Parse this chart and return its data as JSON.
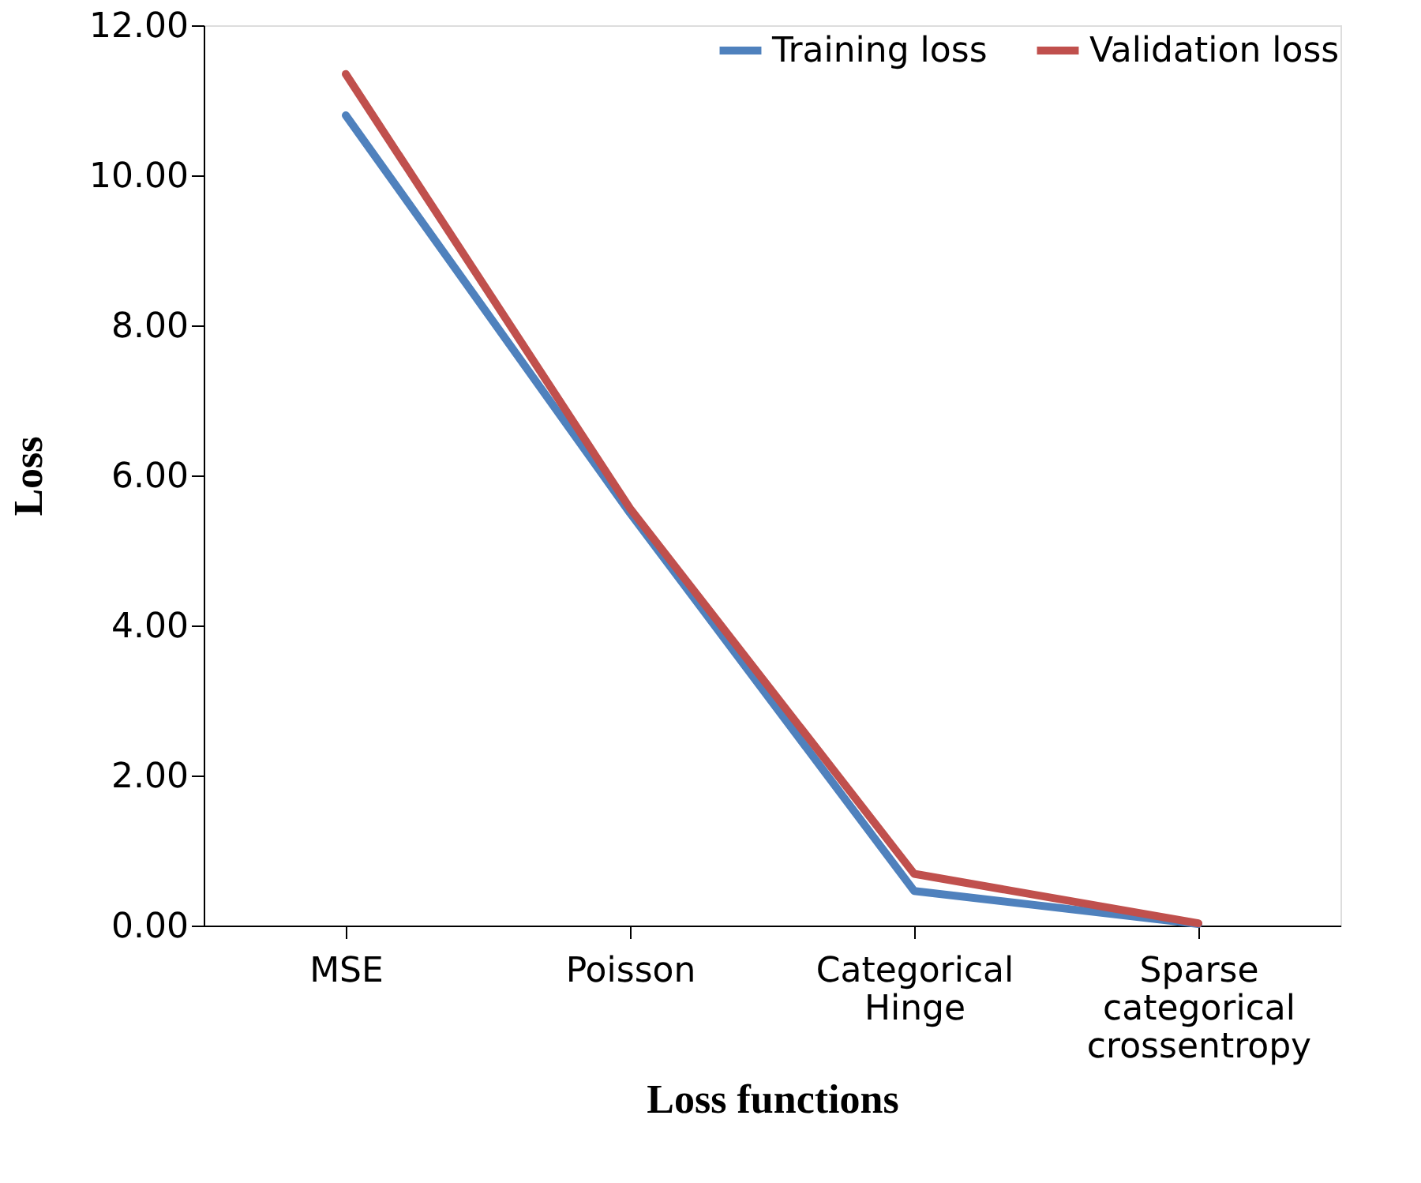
{
  "chart_data": {
    "type": "line",
    "xlabel": "Loss  functions",
    "ylabel": "Loss",
    "categories": [
      "MSE",
      "Poisson",
      "Categorical Hinge",
      "Sparse categorical crossentropy"
    ],
    "series": [
      {
        "name": "Training loss",
        "color": "#4f81bd",
        "values": [
          10.8,
          5.5,
          0.46,
          0.02
        ]
      },
      {
        "name": "Validation loss",
        "color": "#c0504d",
        "values": [
          11.35,
          5.56,
          0.69,
          0.03
        ]
      }
    ],
    "ylim": [
      0,
      12
    ],
    "yticks": [
      {
        "value": 0,
        "label": "0.00"
      },
      {
        "value": 2,
        "label": "2.00"
      },
      {
        "value": 4,
        "label": "4.00"
      },
      {
        "value": 6,
        "label": "6.00"
      },
      {
        "value": 8,
        "label": "8.00"
      },
      {
        "value": 10,
        "label": "10.00"
      },
      {
        "value": 12,
        "label": "12.00"
      }
    ],
    "grid": false,
    "legend": "top right",
    "marker": "none",
    "line_style": "solid"
  }
}
